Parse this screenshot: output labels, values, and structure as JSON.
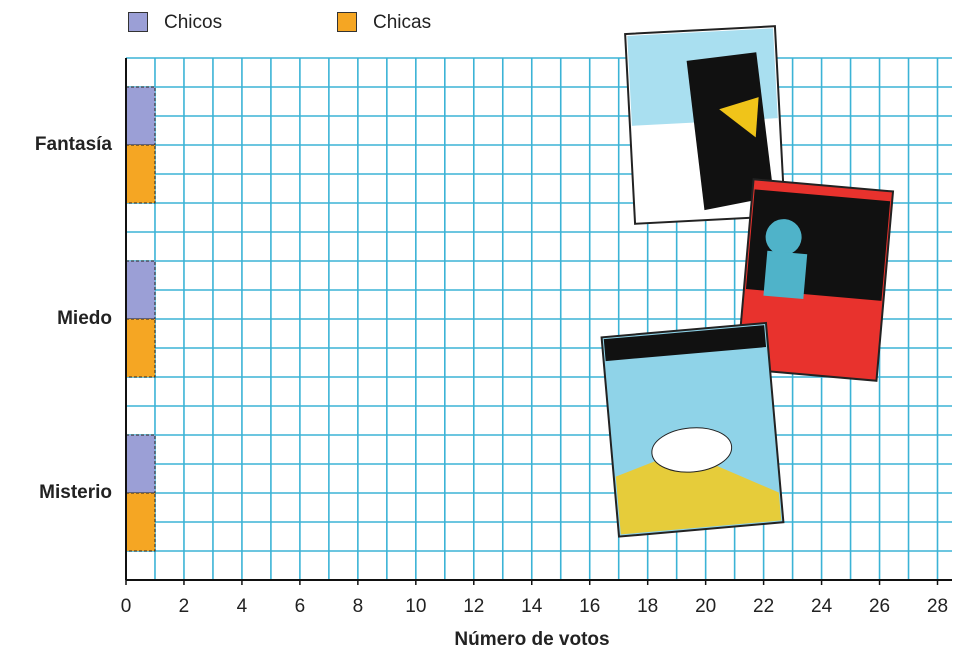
{
  "chart_data": {
    "type": "hbar",
    "categories": [
      "Fantasía",
      "Miedo",
      "Misterio"
    ],
    "series": [
      {
        "name": "Chicos",
        "color": "#9b9fd6",
        "values": [
          1,
          1,
          1
        ]
      },
      {
        "name": "Chicas",
        "color": "#f5a623",
        "values": [
          1,
          1,
          1
        ]
      }
    ],
    "xlabel": "Número de votos",
    "xlim": [
      0,
      28.5
    ],
    "xticks": [
      0,
      2,
      4,
      6,
      8,
      10,
      12,
      14,
      16,
      18,
      20,
      22,
      24,
      26,
      28
    ],
    "minor_xticks": [
      1,
      3,
      5,
      7,
      9,
      11,
      13,
      15,
      17,
      19,
      21,
      23,
      25,
      27
    ],
    "grid": true,
    "legend": "top"
  }
}
